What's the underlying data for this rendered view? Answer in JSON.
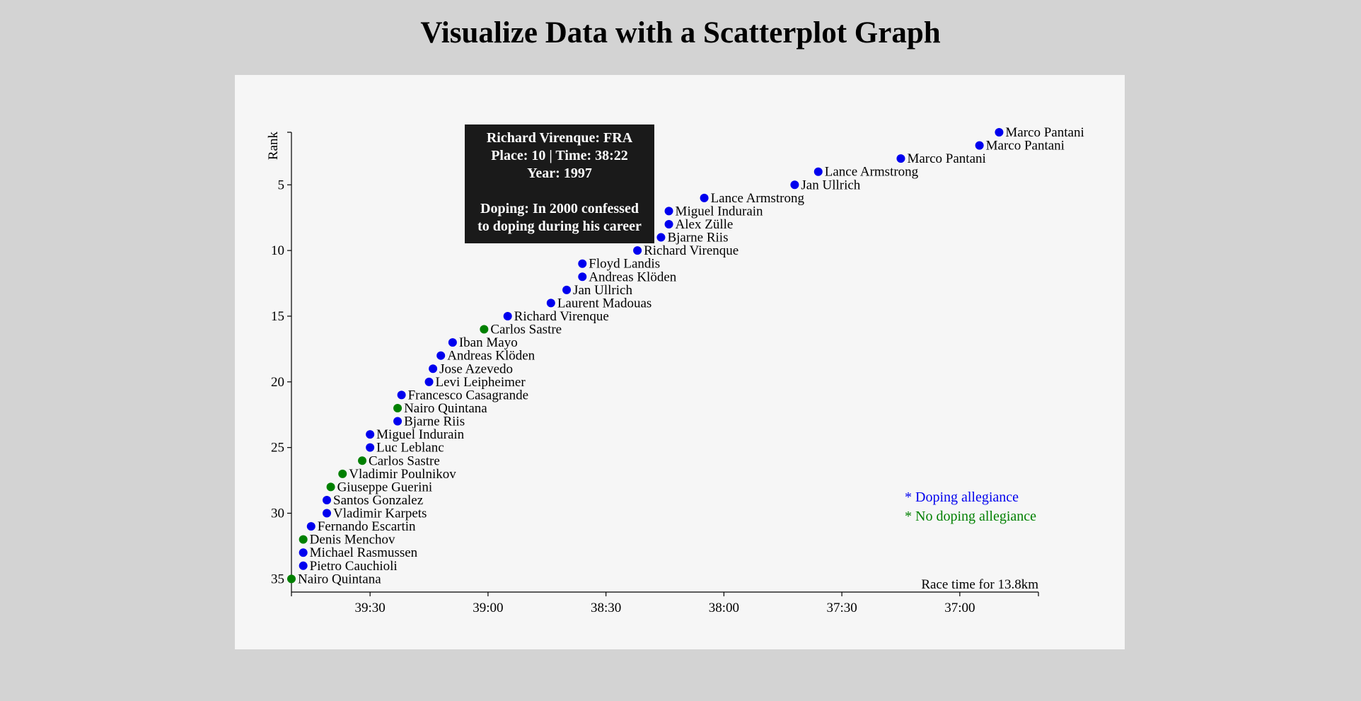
{
  "page": {
    "title": "Visualize Data with a Scatterplot Graph"
  },
  "colors": {
    "doping": "#0000ee",
    "no_doping": "#008000",
    "tooltip_bg": "#1a1a1a"
  },
  "tooltip": {
    "line1": "Richard Virenque: FRA",
    "line2": "Place: 10 | Time: 38:22",
    "line3": "Year: 1997",
    "line4": "Doping: In 2000 confessed",
    "line5": "to doping during his career"
  },
  "legend": {
    "doping": "* Doping allegiance",
    "no_doping": "* No doping allegiance"
  },
  "chart_data": {
    "type": "scatter",
    "title": "",
    "xlabel": "Race time for 13.8km",
    "ylabel": "Rank",
    "x_ticks": [
      "39:30",
      "39:00",
      "38:30",
      "38:00",
      "37:30",
      "37:00"
    ],
    "y_ticks": [
      "5",
      "10",
      "15",
      "20",
      "25",
      "30",
      "35"
    ],
    "points": [
      {
        "rank": 1,
        "time": "36:50",
        "name": "Marco Pantani",
        "doping": true
      },
      {
        "rank": 2,
        "time": "36:55",
        "name": "Marco Pantani",
        "doping": true
      },
      {
        "rank": 3,
        "time": "37:15",
        "name": "Marco Pantani",
        "doping": true
      },
      {
        "rank": 4,
        "time": "37:36",
        "name": "Lance Armstrong",
        "doping": true
      },
      {
        "rank": 5,
        "time": "37:42",
        "name": "Jan Ullrich",
        "doping": true
      },
      {
        "rank": 6,
        "time": "38:05",
        "name": "Lance Armstrong",
        "doping": true
      },
      {
        "rank": 7,
        "time": "38:14",
        "name": "Miguel Indurain",
        "doping": true
      },
      {
        "rank": 8,
        "time": "38:14",
        "name": "Alex Zülle",
        "doping": true
      },
      {
        "rank": 9,
        "time": "38:16",
        "name": "Bjarne Riis",
        "doping": true
      },
      {
        "rank": 10,
        "time": "38:22",
        "name": "Richard Virenque",
        "doping": true
      },
      {
        "rank": 11,
        "time": "38:36",
        "name": "Floyd Landis",
        "doping": true
      },
      {
        "rank": 12,
        "time": "38:36",
        "name": "Andreas Klöden",
        "doping": true
      },
      {
        "rank": 13,
        "time": "38:40",
        "name": "Jan Ullrich",
        "doping": true
      },
      {
        "rank": 14,
        "time": "38:44",
        "name": "Laurent Madouas",
        "doping": true
      },
      {
        "rank": 15,
        "time": "38:55",
        "name": "Richard Virenque",
        "doping": true
      },
      {
        "rank": 16,
        "time": "39:01",
        "name": "Carlos Sastre",
        "doping": false
      },
      {
        "rank": 17,
        "time": "39:09",
        "name": "Iban Mayo",
        "doping": true
      },
      {
        "rank": 18,
        "time": "39:12",
        "name": "Andreas Klöden",
        "doping": true
      },
      {
        "rank": 19,
        "time": "39:14",
        "name": "Jose Azevedo",
        "doping": true
      },
      {
        "rank": 20,
        "time": "39:15",
        "name": "Levi Leipheimer",
        "doping": true
      },
      {
        "rank": 21,
        "time": "39:22",
        "name": "Francesco Casagrande",
        "doping": true
      },
      {
        "rank": 22,
        "time": "39:23",
        "name": "Nairo Quintana",
        "doping": false
      },
      {
        "rank": 23,
        "time": "39:23",
        "name": "Bjarne Riis",
        "doping": true
      },
      {
        "rank": 24,
        "time": "39:30",
        "name": "Miguel Indurain",
        "doping": true
      },
      {
        "rank": 25,
        "time": "39:30",
        "name": "Luc Leblanc",
        "doping": true
      },
      {
        "rank": 26,
        "time": "39:32",
        "name": "Carlos Sastre",
        "doping": false
      },
      {
        "rank": 27,
        "time": "39:37",
        "name": "Vladimir Poulnikov",
        "doping": false
      },
      {
        "rank": 28,
        "time": "39:40",
        "name": "Giuseppe Guerini",
        "doping": false
      },
      {
        "rank": 29,
        "time": "39:41",
        "name": "Santos Gonzalez",
        "doping": true
      },
      {
        "rank": 30,
        "time": "39:41",
        "name": "Vladimir Karpets",
        "doping": true
      },
      {
        "rank": 31,
        "time": "39:45",
        "name": "Fernando Escartin",
        "doping": true
      },
      {
        "rank": 32,
        "time": "39:47",
        "name": "Denis Menchov",
        "doping": false
      },
      {
        "rank": 33,
        "time": "39:47",
        "name": "Michael Rasmussen",
        "doping": true
      },
      {
        "rank": 34,
        "time": "39:47",
        "name": "Pietro Cauchioli",
        "doping": true
      },
      {
        "rank": 35,
        "time": "39:50",
        "name": "Nairo Quintana",
        "doping": false
      }
    ]
  }
}
